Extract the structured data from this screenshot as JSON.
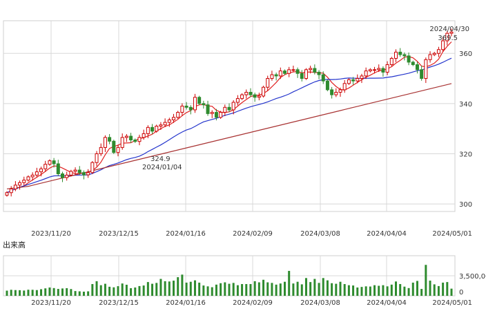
{
  "volume_panel": {
    "title": "出来高"
  },
  "colors": {
    "up": "#cc0000",
    "down": "#2e8b2e",
    "ma_short": "#e02020",
    "ma_mid": "#2233cc",
    "ma_long": "#a83232",
    "volume": "#2e8b2e",
    "annotation_high": "#e08000",
    "annotation_low": "#6b9fb0"
  },
  "chart_data": [
    {
      "type": "candlestick",
      "title": "",
      "x_tick_labels": [
        "2023/11/20",
        "2023/12/15",
        "2024/01/16",
        "2024/02/09",
        "2024/03/08",
        "2024/04/04",
        "2024/05/01"
      ],
      "y_tick_labels": [
        "300",
        "320",
        "340",
        "360"
      ],
      "ylim": [
        297,
        373
      ],
      "grid": true,
      "moving_averages": [
        {
          "name": "short",
          "color": "#e02020"
        },
        {
          "name": "mid",
          "color": "#2233cc"
        },
        {
          "name": "long",
          "color": "#a83232"
        }
      ],
      "annotations": [
        {
          "date": "2024/04/30",
          "value": "369.5",
          "kind": "high"
        },
        {
          "date": "2024/01/04",
          "value": "324.9",
          "kind": "low"
        }
      ],
      "close_values": [
        304.5,
        306,
        307.5,
        308.5,
        309.5,
        310.8,
        311.5,
        312.8,
        314,
        315.8,
        317.2,
        316,
        312,
        310.5,
        311.5,
        313,
        313.5,
        312.5,
        311.6,
        312.5,
        316.5,
        320,
        322.5,
        326.5,
        325,
        320.5,
        322.5,
        326.5,
        327,
        325.5,
        324.9,
        326.5,
        328,
        330.5,
        329,
        331,
        331.5,
        332.5,
        333.5,
        334.5,
        336.5,
        339,
        338.5,
        337.5,
        342.5,
        340,
        339.5,
        336,
        336.5,
        334.5,
        336.5,
        338.5,
        337.5,
        340.5,
        342,
        343.5,
        344.5,
        343.5,
        342.5,
        343,
        346.5,
        350,
        351.5,
        351,
        353,
        352,
        353.5,
        353.5,
        352,
        350,
        353.5,
        354,
        352.5,
        351.5,
        349,
        345.5,
        343.5,
        344.5,
        345.5,
        348,
        349.5,
        349,
        350,
        351,
        353,
        353.5,
        353.5,
        354,
        352.5,
        355.5,
        358,
        360.5,
        359.5,
        359,
        356.5,
        355.5,
        353.5,
        350,
        357.5,
        359.5,
        360,
        361.5,
        365,
        368,
        368.5
      ],
      "volume_tick_labels": [
        "3,500,00",
        "0"
      ],
      "volume_ylim": [
        0,
        7000000
      ],
      "volume_values": [
        900000,
        1050000,
        1000000,
        980000,
        920000,
        1060000,
        1050000,
        1000000,
        1150000,
        1300000,
        1450000,
        1350000,
        1200000,
        1280000,
        1330000,
        1180000,
        830000,
        780000,
        720000,
        780000,
        2050000,
        2550000,
        1850000,
        2100000,
        1580000,
        1480000,
        1680000,
        2150000,
        1930000,
        1330000,
        1450000,
        1700000,
        1800000,
        2400000,
        2100000,
        2250000,
        2950000,
        2550000,
        2500000,
        2650000,
        3250000,
        3700000,
        2300000,
        2450000,
        2700000,
        2300000,
        1800000,
        1650000,
        1500000,
        1950000,
        2200000,
        2350000,
        2100000,
        2250000,
        1850000,
        2050000,
        2050000,
        2050000,
        2550000,
        2350000,
        2800000,
        2350000,
        2250000,
        1950000,
        2150000,
        2450000,
        4350000,
        2150000,
        2450000,
        2000000,
        3100000,
        2400000,
        2950000,
        2250000,
        3100000,
        2700000,
        2200000,
        2100000,
        2450000,
        2050000,
        1850000,
        1800000,
        1450000,
        1550000,
        1650000,
        1620000,
        1850000,
        1750000,
        1850000,
        1650000,
        1950000,
        2500000,
        2050000,
        1600000,
        1350000,
        2300000,
        2600000,
        1200000,
        5400000,
        2650000,
        2000000,
        1700000,
        2300000,
        2400000,
        1250000
      ]
    }
  ]
}
